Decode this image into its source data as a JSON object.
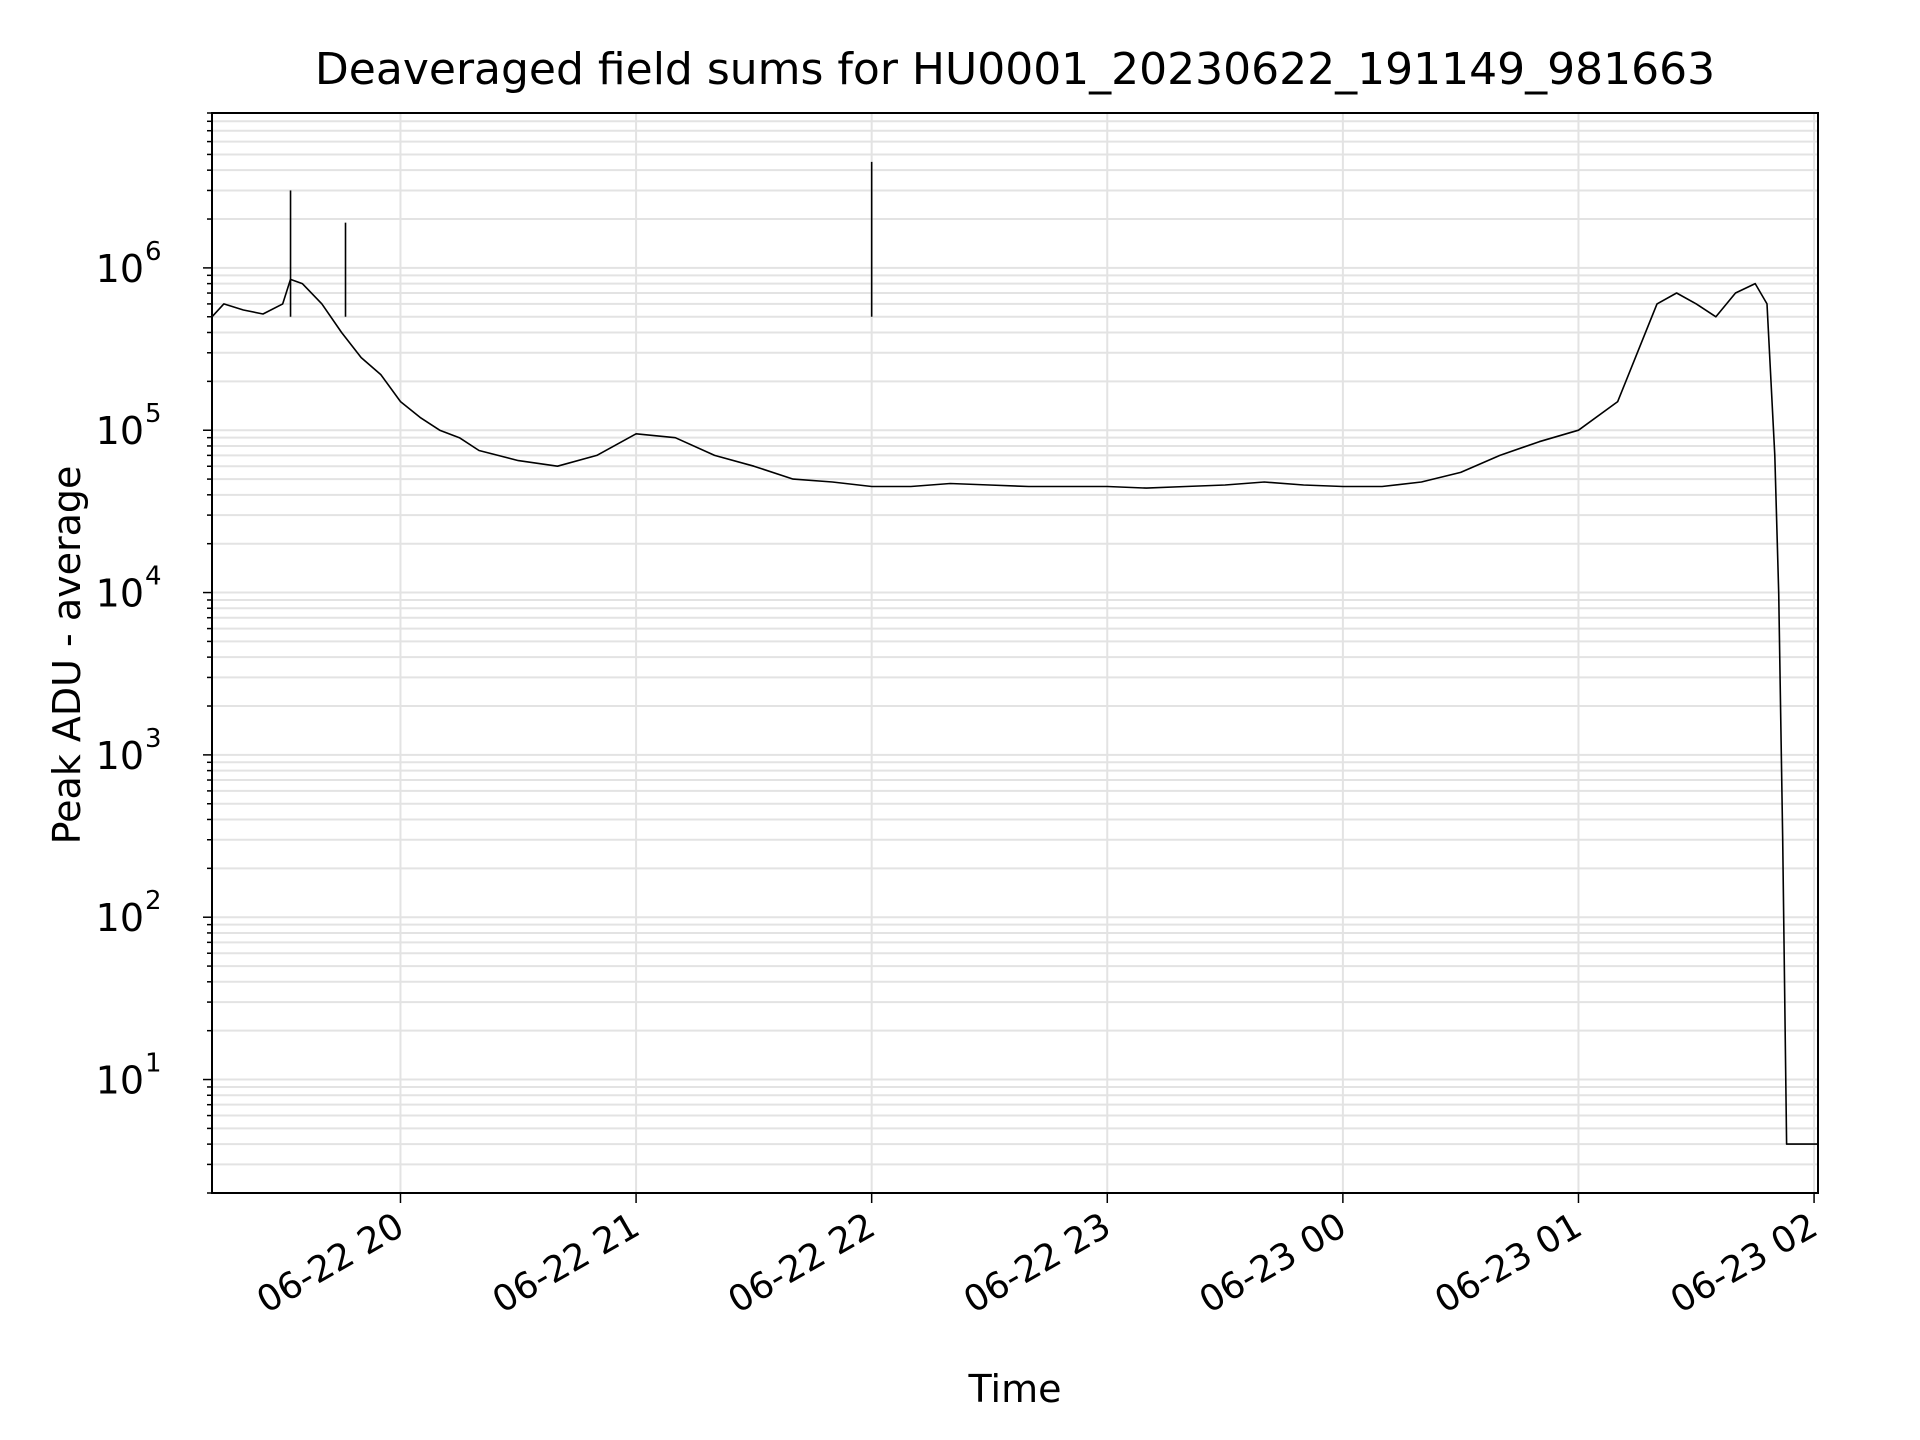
{
  "chart_data": {
    "type": "line",
    "title": "Deaveraged field sums for HU0001_20230622_191149_981663",
    "xlabel": "Time",
    "ylabel": "Peak ADU - average",
    "yscale": "log",
    "ylim": [
      2,
      9000000
    ],
    "xlim": [
      "06-22 19:12",
      "06-23 02:01"
    ],
    "grid": true,
    "x_ticks": [
      "06-22 20",
      "06-22 21",
      "06-22 22",
      "06-22 23",
      "06-23 00",
      "06-23 01",
      "06-23 02"
    ],
    "y_ticks": [
      "10",
      "100",
      "1000",
      "10000",
      "100000",
      "1000000"
    ],
    "y_tick_labels": [
      {
        "base": "10",
        "exp": "1"
      },
      {
        "base": "10",
        "exp": "2"
      },
      {
        "base": "10",
        "exp": "3"
      },
      {
        "base": "10",
        "exp": "4"
      },
      {
        "base": "10",
        "exp": "5"
      },
      {
        "base": "10",
        "exp": "6"
      }
    ],
    "line_color": "#000000",
    "series": [
      {
        "x": [
          "06-22 19:12",
          "06-22 19:15",
          "06-22 19:20",
          "06-22 19:25",
          "06-22 19:30",
          "06-22 19:32",
          "06-22 19:35",
          "06-22 19:40",
          "06-22 19:45",
          "06-22 19:50",
          "06-22 19:55",
          "06-22 20:00",
          "06-22 20:05",
          "06-22 20:10",
          "06-22 20:15",
          "06-22 20:20",
          "06-22 20:30",
          "06-22 20:40",
          "06-22 20:50",
          "06-22 21:00",
          "06-22 21:10",
          "06-22 21:20",
          "06-22 21:30",
          "06-22 21:40",
          "06-22 21:50",
          "06-22 22:00",
          "06-22 22:10",
          "06-22 22:20",
          "06-22 22:30",
          "06-22 22:40",
          "06-22 22:50",
          "06-22 23:00",
          "06-22 23:10",
          "06-22 23:20",
          "06-22 23:30",
          "06-22 23:40",
          "06-22 23:50",
          "06-23 00:00",
          "06-23 00:10",
          "06-23 00:20",
          "06-23 00:30",
          "06-23 00:40",
          "06-23 00:50",
          "06-23 01:00",
          "06-23 01:10",
          "06-23 01:20",
          "06-23 01:25",
          "06-23 01:30",
          "06-23 01:35",
          "06-23 01:40",
          "06-23 01:45",
          "06-23 01:48",
          "06-23 01:50",
          "06-23 01:51",
          "06-23 01:52",
          "06-23 01:53",
          "06-23 01:55",
          "06-23 02:00",
          "06-23 02:01"
        ],
        "y": [
          500000,
          600000,
          550000,
          520000,
          600000,
          850000,
          800000,
          600000,
          400000,
          280000,
          220000,
          150000,
          120000,
          100000,
          90000,
          75000,
          65000,
          60000,
          70000,
          95000,
          90000,
          70000,
          60000,
          50000,
          48000,
          45000,
          45000,
          47000,
          46000,
          45000,
          45000,
          45000,
          44000,
          45000,
          46000,
          48000,
          46000,
          45000,
          45000,
          48000,
          55000,
          70000,
          85000,
          100000,
          150000,
          600000,
          700000,
          600000,
          500000,
          700000,
          800000,
          600000,
          70000,
          10000,
          300,
          4,
          4,
          4,
          4
        ]
      }
    ],
    "spikes": [
      {
        "x": "06-22 19:32",
        "y": 3000000
      },
      {
        "x": "06-22 19:46",
        "y": 1900000
      },
      {
        "x": "06-22 22:00",
        "y": 4500000
      }
    ]
  }
}
